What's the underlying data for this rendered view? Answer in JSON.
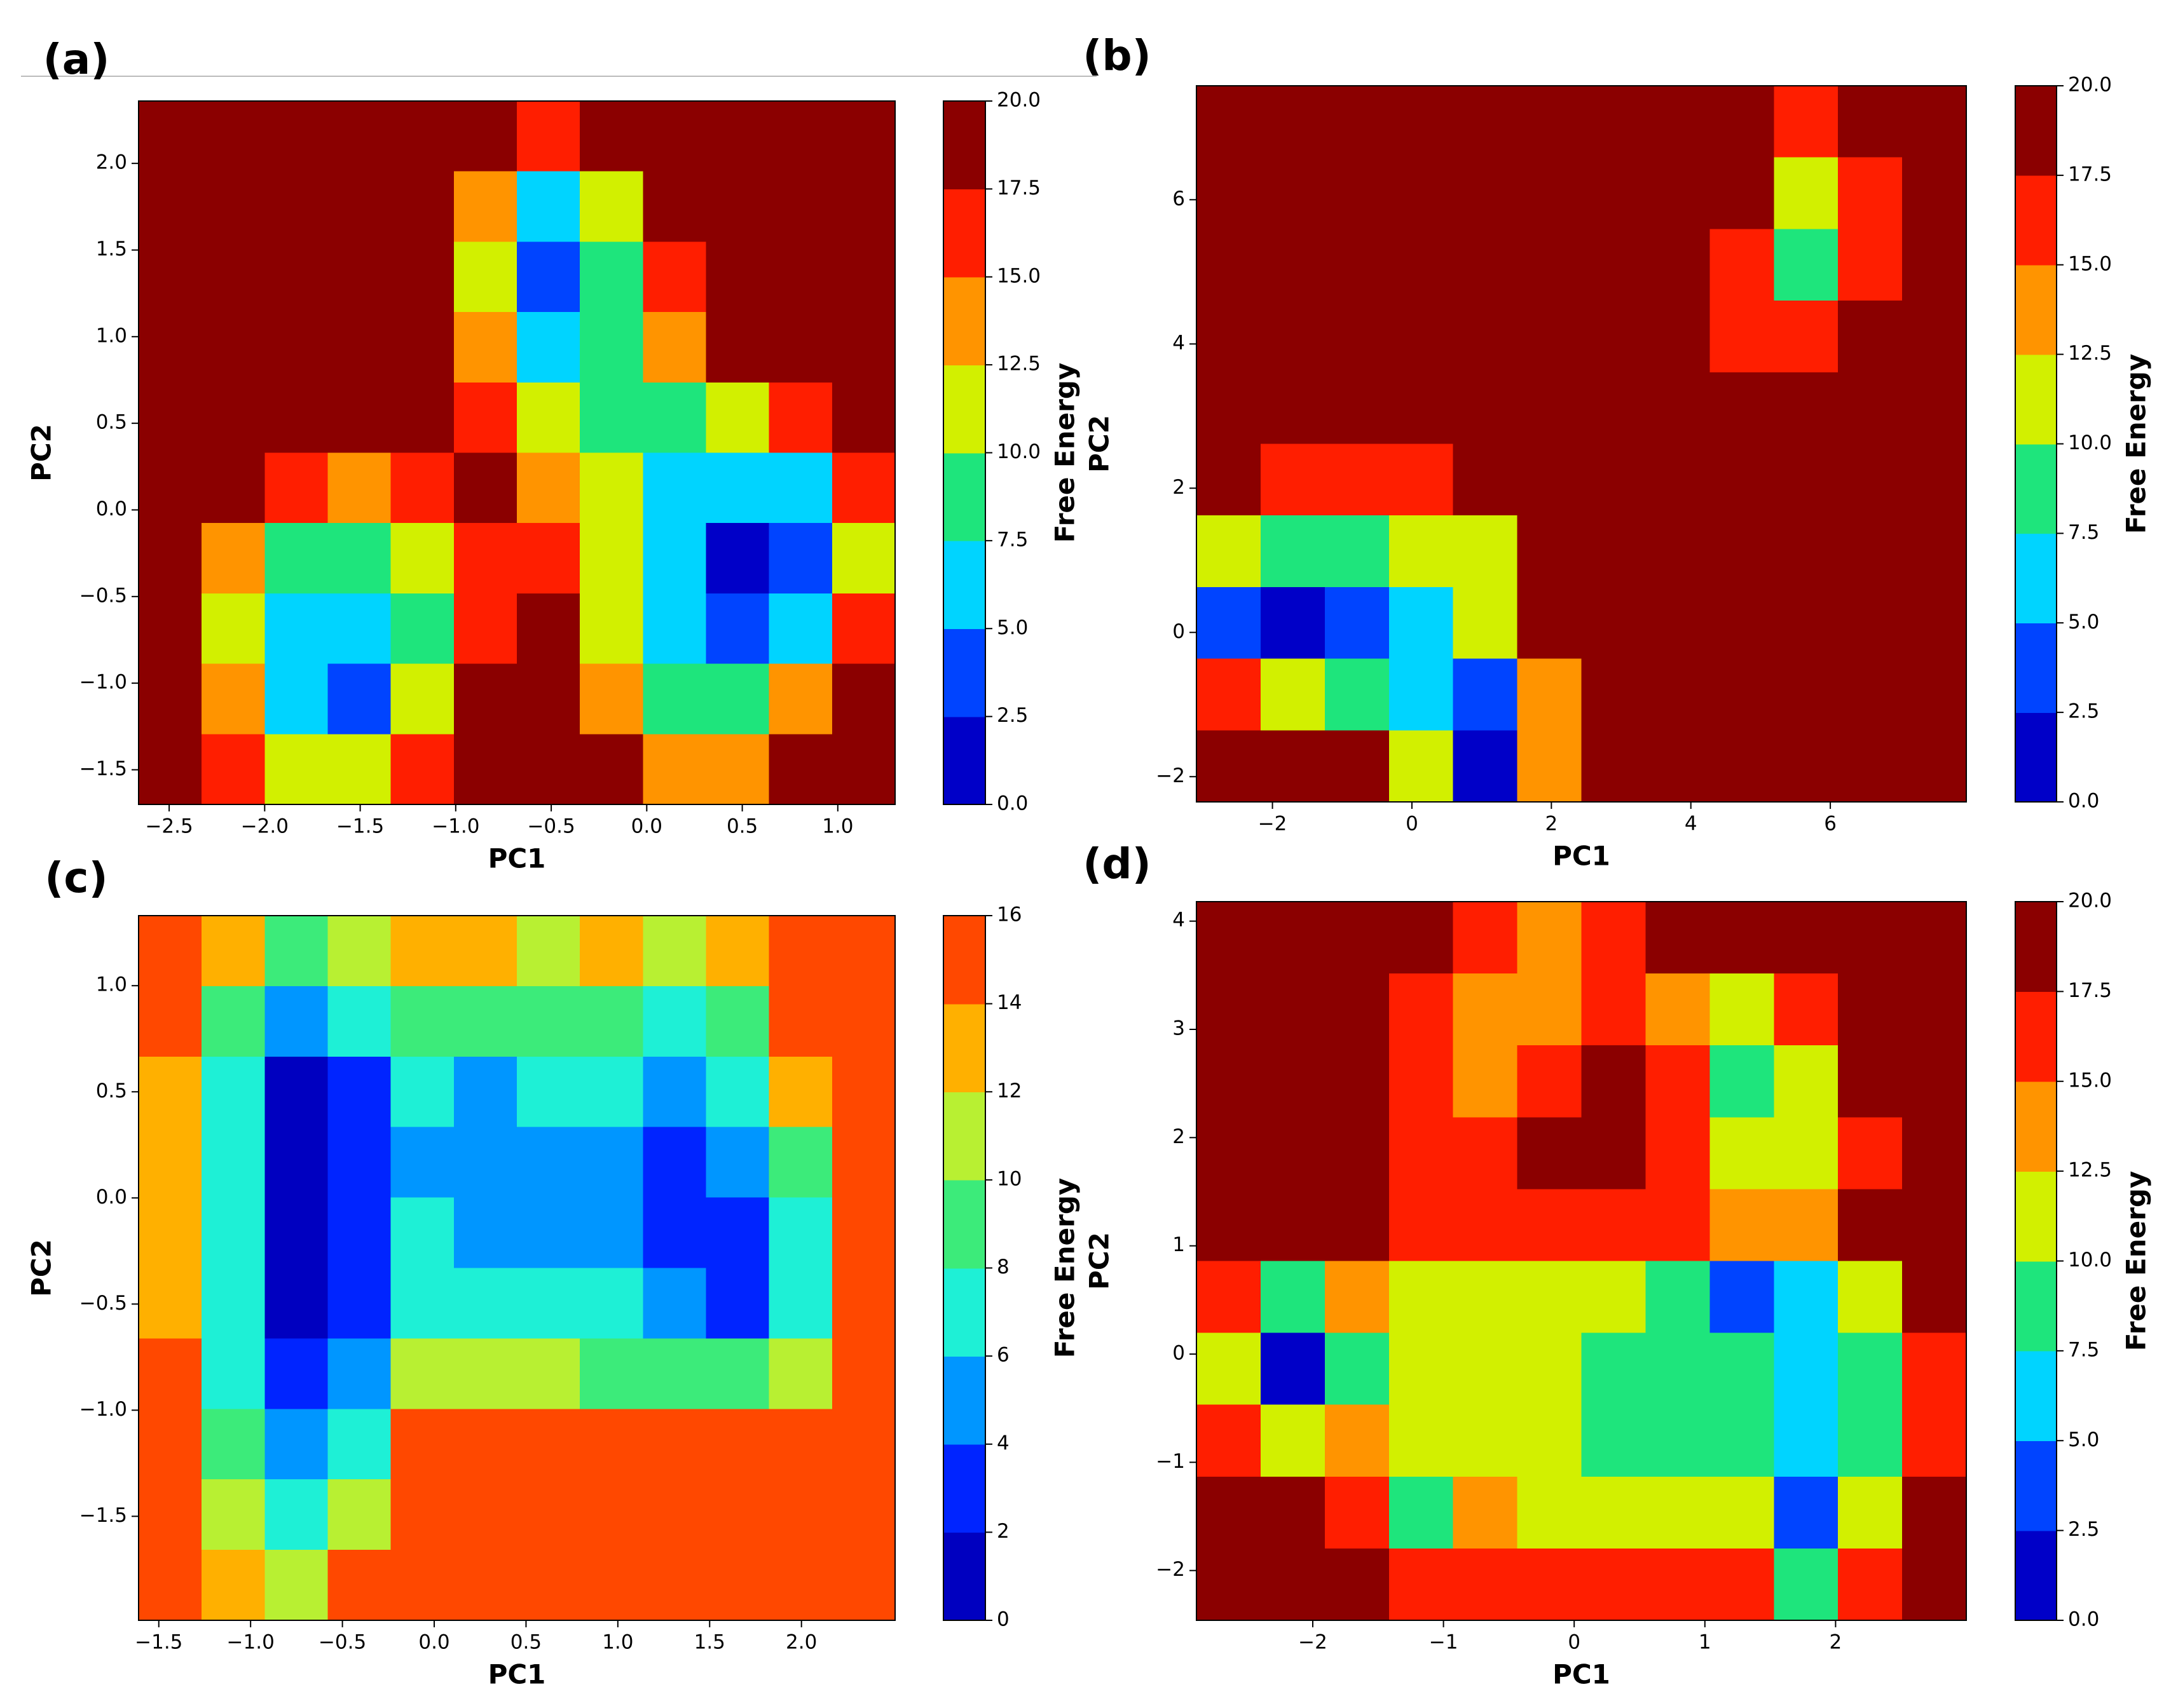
{
  "chart_data": [
    {
      "type": "contour",
      "title": "(a)",
      "xlabel": "PC1",
      "ylabel": "PC2",
      "colorbar_label": "Free Energy",
      "xlim": [
        -2.66,
        1.3
      ],
      "ylim": [
        -1.7,
        2.36
      ],
      "xticks": [
        {
          "value": -2.5,
          "label": "−2.5"
        },
        {
          "value": -2.0,
          "label": "−2.0"
        },
        {
          "value": -1.5,
          "label": "−1.5"
        },
        {
          "value": -1.0,
          "label": "−1.0"
        },
        {
          "value": -0.5,
          "label": "−0.5"
        },
        {
          "value": 0,
          "label": "0.0"
        },
        {
          "value": 0.5,
          "label": "0.5"
        },
        {
          "value": 1,
          "label": "1.0"
        }
      ],
      "yticks": [
        {
          "value": -1.5,
          "label": "−1.5"
        },
        {
          "value": -1.0,
          "label": "−1.0"
        },
        {
          "value": -0.5,
          "label": "−0.5"
        },
        {
          "value": 0,
          "label": "0.0"
        },
        {
          "value": 0.5,
          "label": "0.5"
        },
        {
          "value": 1,
          "label": "1.0"
        },
        {
          "value": 1.5,
          "label": "1.5"
        },
        {
          "value": 2,
          "label": "2.0"
        }
      ],
      "levels": [
        {
          "value": 0,
          "label": "0.0"
        },
        {
          "value": 2.5,
          "label": "2.5"
        },
        {
          "value": 5,
          "label": "5.0"
        },
        {
          "value": 7.5,
          "label": "7.5"
        },
        {
          "value": 10,
          "label": "10.0"
        },
        {
          "value": 12.5,
          "label": "12.5"
        },
        {
          "value": 15,
          "label": "15.0"
        },
        {
          "value": 17.5,
          "label": "17.5"
        },
        {
          "value": 20,
          "label": "20.0"
        }
      ],
      "colors": [
        "#0000c8",
        "#0044ff",
        "#00d4ff",
        "#1ee57c",
        "#d2f000",
        "#ff9400",
        "#ff1e00",
        "#8b0000"
      ],
      "z": [
        [
          20,
          20,
          20,
          20,
          20,
          18,
          15,
          18,
          20,
          20,
          20,
          20
        ],
        [
          20,
          20,
          20,
          20,
          20,
          14,
          7,
          12,
          20,
          20,
          20,
          20
        ],
        [
          20,
          20,
          20,
          20,
          20,
          11,
          4,
          9,
          17,
          20,
          20,
          20
        ],
        [
          20,
          20,
          20,
          20,
          20,
          14,
          7,
          8,
          14,
          18,
          20,
          20
        ],
        [
          20,
          20,
          20,
          20,
          20,
          17,
          10,
          9,
          9,
          11,
          17,
          20
        ],
        [
          20,
          18,
          15,
          14,
          17,
          18,
          14,
          10,
          7,
          5,
          7,
          15
        ],
        [
          19,
          13,
          9,
          8,
          11,
          16,
          15,
          11,
          6,
          2,
          3,
          12
        ],
        [
          20,
          12,
          7,
          5,
          9,
          17,
          20,
          12,
          6,
          4,
          7,
          15
        ],
        [
          20,
          13,
          6,
          4,
          10,
          18,
          20,
          14,
          9,
          9,
          13,
          19
        ],
        [
          20,
          16,
          11,
          12,
          17,
          20,
          20,
          18,
          14,
          14,
          18,
          20
        ]
      ]
    },
    {
      "type": "contour",
      "title": "(b)",
      "xlabel": "PC1",
      "ylabel": "PC2",
      "colorbar_label": "Free Energy",
      "xlim": [
        -3.09,
        7.95
      ],
      "ylim": [
        -2.35,
        7.58
      ],
      "xticks": [
        {
          "value": -2,
          "label": "−2"
        },
        0,
        2,
        4,
        6
      ],
      "yticks": [
        {
          "value": -2,
          "label": "−2"
        },
        0,
        2,
        4,
        6
      ],
      "levels": [
        {
          "value": 0,
          "label": "0.0"
        },
        {
          "value": 2.5,
          "label": "2.5"
        },
        {
          "value": 5,
          "label": "5.0"
        },
        {
          "value": 7.5,
          "label": "7.5"
        },
        {
          "value": 10,
          "label": "10.0"
        },
        {
          "value": 12.5,
          "label": "12.5"
        },
        {
          "value": 15,
          "label": "15.0"
        },
        {
          "value": 17.5,
          "label": "17.5"
        },
        {
          "value": 20,
          "label": "20.0"
        }
      ],
      "colors": [
        "#0000c8",
        "#0044ff",
        "#00d4ff",
        "#1ee57c",
        "#d2f000",
        "#ff9400",
        "#ff1e00",
        "#8b0000"
      ],
      "z": [
        [
          20,
          20,
          20,
          20,
          20,
          20,
          20,
          20,
          20,
          17,
          20,
          20
        ],
        [
          20,
          20,
          20,
          20,
          20,
          20,
          20,
          20,
          19,
          12,
          16,
          20
        ],
        [
          20,
          20,
          20,
          20,
          20,
          20,
          20,
          20,
          17,
          8,
          15,
          20
        ],
        [
          20,
          20,
          20,
          20,
          20,
          20,
          20,
          20,
          16,
          16,
          20,
          20
        ],
        [
          20,
          20,
          20,
          20,
          20,
          20,
          20,
          20,
          20,
          20,
          20,
          20
        ],
        [
          20,
          17,
          16,
          17,
          19,
          20,
          20,
          20,
          20,
          20,
          20,
          20
        ],
        [
          12,
          9,
          9,
          11,
          12,
          20,
          20,
          20,
          20,
          20,
          20,
          20
        ],
        [
          3,
          2,
          4,
          7,
          11,
          18,
          20,
          20,
          20,
          20,
          20,
          20
        ],
        [
          17,
          12,
          9,
          6,
          4,
          14,
          20,
          20,
          20,
          20,
          20,
          20
        ],
        [
          20,
          20,
          19,
          10,
          2,
          14,
          20,
          20,
          20,
          20,
          20,
          20
        ]
      ]
    },
    {
      "type": "contour",
      "title": "(c)",
      "xlabel": "PC1",
      "ylabel": "PC2",
      "colorbar_label": "Free Energy",
      "xlim": [
        -1.61,
        2.51
      ],
      "ylim": [
        -1.99,
        1.33
      ],
      "xticks": [
        {
          "value": -1.5,
          "label": "−1.5"
        },
        {
          "value": -1.0,
          "label": "−1.0"
        },
        {
          "value": -0.5,
          "label": "−0.5"
        },
        {
          "value": 0,
          "label": "0.0"
        },
        {
          "value": 0.5,
          "label": "0.5"
        },
        {
          "value": 1,
          "label": "1.0"
        },
        {
          "value": 1.5,
          "label": "1.5"
        },
        {
          "value": 2,
          "label": "2.0"
        }
      ],
      "yticks": [
        {
          "value": -1.5,
          "label": "−1.5"
        },
        {
          "value": -1.0,
          "label": "−1.0"
        },
        {
          "value": -0.5,
          "label": "−0.5"
        },
        {
          "value": 0,
          "label": "0.0"
        },
        {
          "value": 0.5,
          "label": "0.5"
        },
        {
          "value": 1,
          "label": "1.0"
        }
      ],
      "levels": [
        0,
        2,
        4,
        6,
        8,
        10,
        12,
        14,
        16
      ],
      "colors": [
        "#0000c0",
        "#0024ff",
        "#0096ff",
        "#1ef0d6",
        "#3ceb7a",
        "#b8f032",
        "#ffb000",
        "#ff4800"
      ],
      "z": [
        [
          16,
          12,
          9,
          10,
          12,
          13,
          11,
          12,
          11,
          13,
          16,
          16
        ],
        [
          14,
          9,
          4,
          6,
          8,
          8,
          8,
          9,
          7,
          9,
          14,
          16
        ],
        [
          13,
          7,
          1,
          3,
          6,
          5,
          6,
          6,
          5,
          7,
          12,
          16
        ],
        [
          13,
          6,
          1,
          2,
          5,
          4,
          5,
          5,
          3,
          5,
          9,
          16
        ],
        [
          12,
          6,
          1,
          2,
          6,
          5,
          5,
          5,
          2,
          3,
          7,
          15
        ],
        [
          13,
          6,
          1,
          3,
          7,
          7,
          7,
          7,
          5,
          3,
          6,
          14
        ],
        [
          14,
          7,
          2,
          4,
          10,
          11,
          10,
          9,
          8,
          8,
          10,
          15
        ],
        [
          16,
          8,
          4,
          7,
          14,
          15,
          14,
          14,
          14,
          14,
          15,
          16
        ],
        [
          16,
          10,
          7,
          11,
          16,
          16,
          16,
          16,
          16,
          16,
          16,
          16
        ],
        [
          16,
          13,
          11,
          15,
          16,
          16,
          16,
          16,
          16,
          16,
          16,
          16
        ]
      ]
    },
    {
      "type": "contour",
      "title": "(d)",
      "xlabel": "PC1",
      "ylabel": "PC2",
      "colorbar_label": "Free Energy",
      "xlim": [
        -2.89,
        3.0
      ],
      "ylim": [
        -2.46,
        4.18
      ],
      "xticks": [
        {
          "value": -2,
          "label": "−2"
        },
        {
          "value": -1,
          "label": "−1"
        },
        0,
        1,
        2
      ],
      "yticks": [
        {
          "value": -2,
          "label": "−2"
        },
        {
          "value": -1,
          "label": "−1"
        },
        0,
        1,
        2,
        3,
        4
      ],
      "levels": [
        {
          "value": 0,
          "label": "0.0"
        },
        {
          "value": 2.5,
          "label": "2.5"
        },
        {
          "value": 5,
          "label": "5.0"
        },
        {
          "value": 7.5,
          "label": "7.5"
        },
        {
          "value": 10,
          "label": "10.0"
        },
        {
          "value": 12.5,
          "label": "12.5"
        },
        {
          "value": 15,
          "label": "15.0"
        },
        {
          "value": 17.5,
          "label": "17.5"
        },
        {
          "value": 20,
          "label": "20.0"
        }
      ],
      "colors": [
        "#0000c8",
        "#0044ff",
        "#00d4ff",
        "#1ee57c",
        "#d2f000",
        "#ff9400",
        "#ff1e00",
        "#8b0000"
      ],
      "z": [
        [
          20,
          20,
          20,
          19,
          15,
          14,
          17,
          19,
          20,
          20,
          20,
          20
        ],
        [
          20,
          20,
          20,
          17,
          13,
          14,
          16,
          13,
          12,
          15,
          20,
          20
        ],
        [
          20,
          20,
          20,
          17,
          13,
          16,
          18,
          16,
          8,
          11,
          18,
          20
        ],
        [
          20,
          20,
          20,
          17,
          16,
          20,
          20,
          17,
          10,
          11,
          17,
          20
        ],
        [
          20,
          20,
          18,
          16,
          16,
          16,
          15,
          16,
          14,
          14,
          18,
          20
        ],
        [
          16,
          9,
          13,
          12,
          12,
          11,
          10,
          8,
          4,
          7,
          12,
          20
        ],
        [
          11,
          1,
          8,
          12,
          11,
          10,
          9,
          9,
          8,
          6,
          9,
          17
        ],
        [
          17,
          11,
          13,
          12,
          12,
          11,
          9,
          9,
          9,
          6,
          8,
          17
        ],
        [
          20,
          18,
          16,
          9,
          13,
          12,
          12,
          12,
          11,
          4,
          11,
          19
        ],
        [
          20,
          20,
          19,
          15,
          17,
          17,
          15,
          16,
          15,
          9,
          15,
          20
        ]
      ]
    }
  ]
}
